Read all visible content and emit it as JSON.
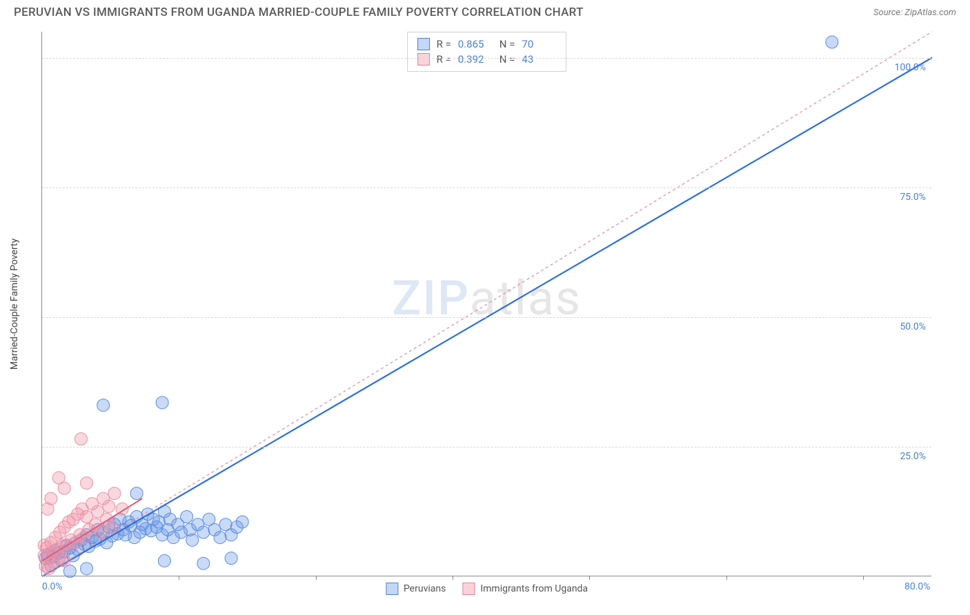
{
  "header": {
    "title": "PERUVIAN VS IMMIGRANTS FROM UGANDA MARRIED-COUPLE FAMILY POVERTY CORRELATION CHART",
    "source": "Source: ZipAtlas.com"
  },
  "chart": {
    "type": "scatter",
    "background_color": "#ffffff",
    "grid_color": "#d8d8d8",
    "axis_color": "#888888",
    "y_axis_label": "Married-Couple Family Poverty",
    "xlim": [
      0,
      80
    ],
    "ylim": [
      0,
      105
    ],
    "x_ticks": [
      {
        "pos": 0,
        "label": "0.0%"
      },
      {
        "pos": 80,
        "label": "80.0%"
      }
    ],
    "x_tick_minor": [
      12.3,
      24.6,
      36.9,
      49.2,
      61.5,
      73.8
    ],
    "y_ticks": [
      {
        "pos": 25,
        "label": "25.0%"
      },
      {
        "pos": 50,
        "label": "50.0%"
      },
      {
        "pos": 75,
        "label": "75.0%"
      },
      {
        "pos": 100,
        "label": "100.0%"
      }
    ],
    "watermark": {
      "bold": "ZIP",
      "rest": "atlas"
    },
    "series": [
      {
        "key": "peruvians",
        "name": "Peruvians",
        "color_fill": "rgba(100,150,230,0.35)",
        "color_stroke": "#5a8ce0",
        "marker_radius": 9,
        "line_color": "#2c6fe0",
        "line_width": 2.2,
        "line_dash": "none",
        "stats": {
          "R": "0.865",
          "N": "70"
        },
        "trend": {
          "x1": 0,
          "y1": 0,
          "x2": 80,
          "y2": 100
        },
        "points": [
          [
            0.3,
            3.5
          ],
          [
            0.5,
            4.2
          ],
          [
            0.8,
            2.1
          ],
          [
            1.0,
            3.8
          ],
          [
            1.2,
            5.0
          ],
          [
            1.5,
            4.5
          ],
          [
            1.8,
            3.2
          ],
          [
            2.0,
            4.8
          ],
          [
            2.2,
            6.0
          ],
          [
            2.5,
            5.5
          ],
          [
            2.8,
            4.0
          ],
          [
            3.0,
            6.5
          ],
          [
            3.2,
            5.2
          ],
          [
            3.5,
            7.0
          ],
          [
            3.8,
            6.2
          ],
          [
            4.0,
            8.0
          ],
          [
            4.2,
            5.8
          ],
          [
            4.5,
            7.5
          ],
          [
            4.8,
            6.8
          ],
          [
            5.0,
            9.0
          ],
          [
            5.2,
            7.2
          ],
          [
            5.5,
            8.5
          ],
          [
            5.8,
            6.5
          ],
          [
            6.0,
            9.5
          ],
          [
            6.3,
            7.8
          ],
          [
            6.5,
            10.0
          ],
          [
            6.8,
            8.2
          ],
          [
            7.0,
            11.0
          ],
          [
            7.3,
            9.0
          ],
          [
            7.5,
            8.0
          ],
          [
            7.8,
            10.5
          ],
          [
            8.0,
            9.8
          ],
          [
            8.3,
            7.5
          ],
          [
            8.5,
            11.5
          ],
          [
            8.8,
            8.5
          ],
          [
            9.0,
            10.0
          ],
          [
            9.3,
            9.2
          ],
          [
            9.5,
            12.0
          ],
          [
            9.8,
            8.8
          ],
          [
            10.0,
            11.0
          ],
          [
            10.3,
            9.5
          ],
          [
            10.5,
            10.5
          ],
          [
            10.8,
            8.0
          ],
          [
            11.0,
            12.5
          ],
          [
            11.3,
            9.0
          ],
          [
            11.5,
            11.0
          ],
          [
            11.8,
            7.5
          ],
          [
            12.2,
            10.0
          ],
          [
            12.5,
            8.5
          ],
          [
            13.0,
            11.5
          ],
          [
            13.3,
            9.0
          ],
          [
            13.5,
            7.0
          ],
          [
            14.0,
            10.0
          ],
          [
            14.5,
            8.5
          ],
          [
            15.0,
            11.0
          ],
          [
            15.5,
            9.0
          ],
          [
            16.0,
            7.5
          ],
          [
            16.5,
            10.0
          ],
          [
            17.0,
            8.0
          ],
          [
            17.5,
            9.5
          ],
          [
            18.0,
            10.5
          ],
          [
            5.5,
            33.0
          ],
          [
            10.8,
            33.5
          ],
          [
            8.5,
            16.0
          ],
          [
            2.5,
            1.0
          ],
          [
            4.0,
            1.5
          ],
          [
            11.0,
            3.0
          ],
          [
            14.5,
            2.5
          ],
          [
            17.0,
            3.5
          ],
          [
            71.0,
            103.0
          ]
        ]
      },
      {
        "key": "uganda",
        "name": "Immigrants from Uganda",
        "color_fill": "rgba(240,140,160,0.35)",
        "color_stroke": "#e890a5",
        "marker_radius": 9,
        "line_color": "#e890a5",
        "line_width": 1.3,
        "line_dash": "4,4",
        "stats": {
          "R": "0.392",
          "N": "43"
        },
        "trend": {
          "x1": 0,
          "y1": 0,
          "x2": 80,
          "y2": 105
        },
        "points": [
          [
            0.2,
            4.0
          ],
          [
            0.4,
            5.5
          ],
          [
            0.6,
            3.5
          ],
          [
            0.8,
            6.5
          ],
          [
            1.0,
            4.8
          ],
          [
            1.2,
            7.5
          ],
          [
            1.4,
            5.2
          ],
          [
            1.6,
            8.5
          ],
          [
            1.8,
            6.0
          ],
          [
            2.0,
            9.5
          ],
          [
            2.2,
            5.8
          ],
          [
            2.4,
            10.5
          ],
          [
            2.6,
            7.0
          ],
          [
            2.8,
            11.0
          ],
          [
            3.0,
            6.5
          ],
          [
            3.2,
            12.0
          ],
          [
            3.4,
            8.0
          ],
          [
            3.6,
            13.0
          ],
          [
            3.8,
            7.5
          ],
          [
            4.0,
            11.5
          ],
          [
            4.2,
            9.0
          ],
          [
            4.5,
            14.0
          ],
          [
            4.8,
            10.0
          ],
          [
            5.0,
            12.5
          ],
          [
            5.3,
            8.5
          ],
          [
            5.5,
            15.0
          ],
          [
            5.8,
            11.0
          ],
          [
            6.0,
            13.5
          ],
          [
            6.3,
            9.5
          ],
          [
            6.5,
            16.0
          ],
          [
            4.0,
            18.0
          ],
          [
            2.0,
            17.0
          ],
          [
            0.8,
            15.0
          ],
          [
            0.5,
            13.0
          ],
          [
            1.5,
            19.0
          ],
          [
            7.2,
            13.0
          ],
          [
            3.5,
            26.5
          ],
          [
            0.3,
            2.0
          ],
          [
            0.6,
            1.5
          ],
          [
            1.0,
            2.8
          ],
          [
            1.5,
            3.5
          ],
          [
            2.0,
            3.0
          ],
          [
            0.2,
            6.0
          ]
        ],
        "solid_segment": {
          "x1": 0,
          "y1": 3,
          "x2": 9,
          "y2": 15,
          "color": "#e05a78",
          "width": 2
        }
      }
    ],
    "legend_bottom": [
      {
        "swatch": "blue",
        "label": "Peruvians"
      },
      {
        "swatch": "pink",
        "label": "Immigrants from Uganda"
      }
    ]
  }
}
